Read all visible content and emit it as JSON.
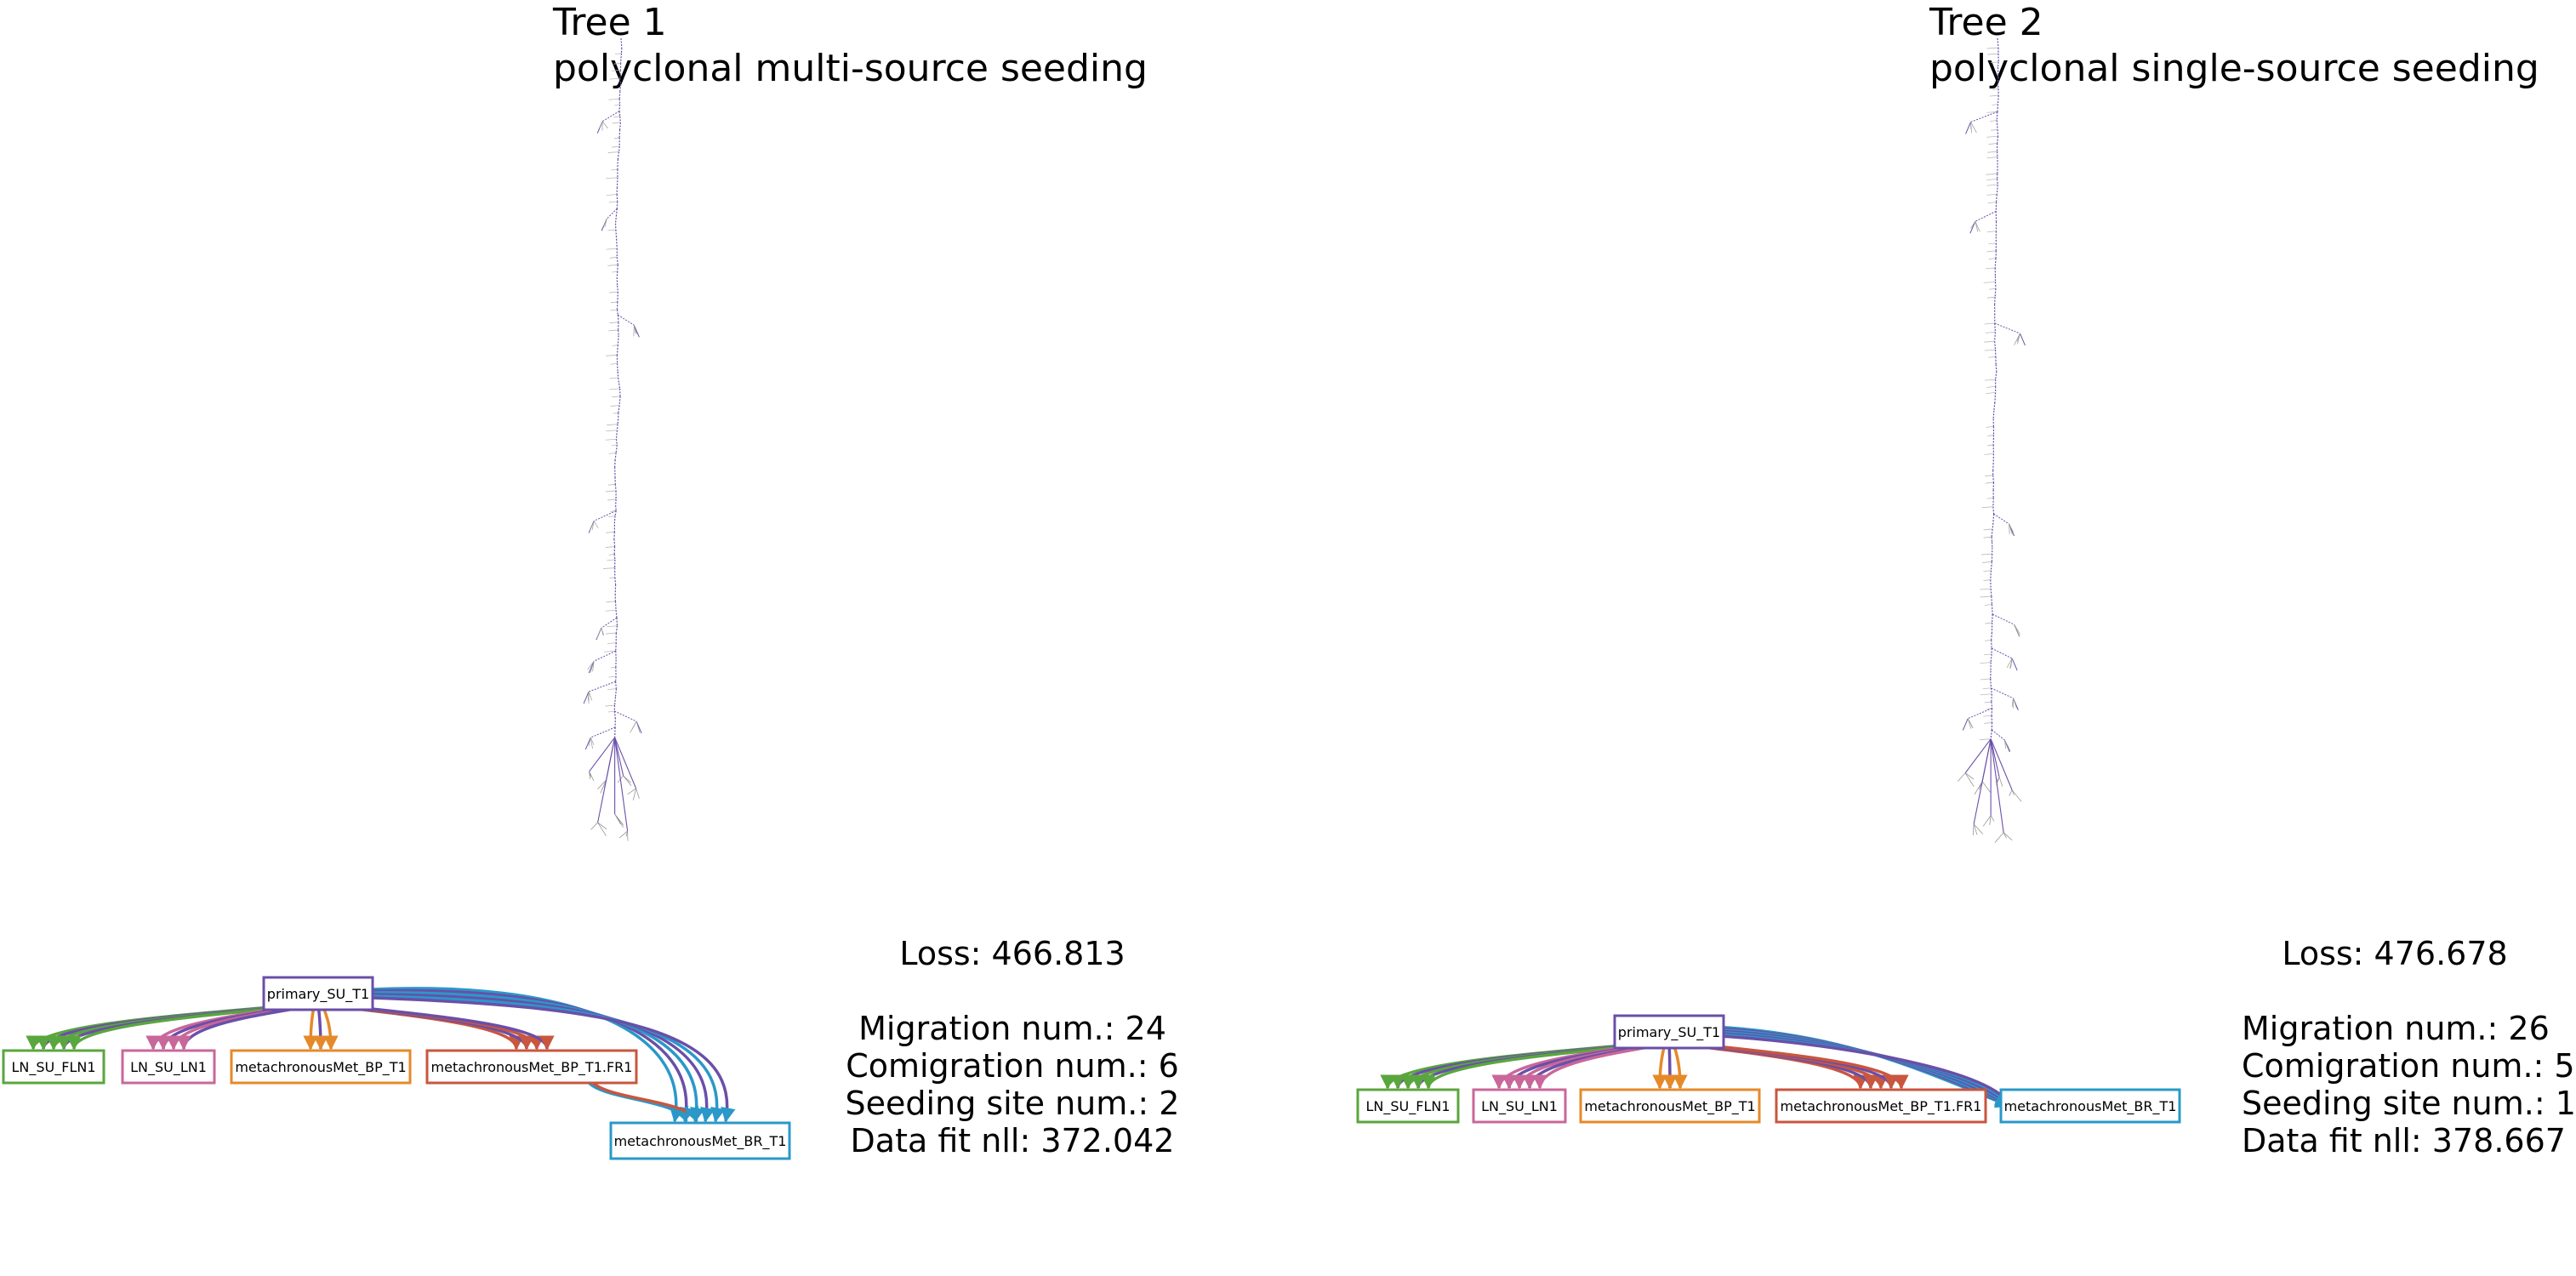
{
  "trees": [
    {
      "name": "Tree 1",
      "pattern": "polyclonal multi-source seeding",
      "loss": "Loss: 466.813",
      "migration": "Migration num.: 24",
      "comigration": "Comigration num.: 6",
      "seeding_sites": "Seeding site num.: 2",
      "data_fit": "Data fit nll: 372.042",
      "sites": [
        {
          "id": "primary",
          "label": "primary_SU_T1",
          "color": "#6a4fa8"
        },
        {
          "id": "fln1",
          "label": "LN_SU_FLN1",
          "color": "#5aa63e"
        },
        {
          "id": "ln1",
          "label": "LN_SU_LN1",
          "color": "#c9679a"
        },
        {
          "id": "bp",
          "label": "metachronousMet_BP_T1",
          "color": "#e58a2a"
        },
        {
          "id": "fr1",
          "label": "metachronousMet_BP_T1.FR1",
          "color": "#c9563f"
        },
        {
          "id": "br",
          "label": "metachronousMet_BR_T1",
          "color": "#2a98c9"
        }
      ],
      "migrations": [
        {
          "from": "primary",
          "to": "fln1",
          "count": 5
        },
        {
          "from": "primary",
          "to": "ln1",
          "count": 4
        },
        {
          "from": "primary",
          "to": "bp",
          "count": 3
        },
        {
          "from": "primary",
          "to": "fr1",
          "count": 4
        },
        {
          "from": "primary",
          "to": "br",
          "count": 6
        },
        {
          "from": "fr1",
          "to": "br",
          "count": 2
        }
      ]
    },
    {
      "name": "Tree 2",
      "pattern": "polyclonal single-source seeding",
      "loss": "Loss: 476.678",
      "migration": "Migration num.: 26",
      "comigration": "Comigration num.: 5",
      "seeding_sites": "Seeding site num.: 1",
      "data_fit": "Data fit nll: 378.667",
      "sites": [
        {
          "id": "primary",
          "label": "primary_SU_T1",
          "color": "#6a4fa8"
        },
        {
          "id": "fln1",
          "label": "LN_SU_FLN1",
          "color": "#5aa63e"
        },
        {
          "id": "ln1",
          "label": "LN_SU_LN1",
          "color": "#c9679a"
        },
        {
          "id": "bp",
          "label": "metachronousMet_BP_T1",
          "color": "#e58a2a"
        },
        {
          "id": "fr1",
          "label": "metachronousMet_BP_T1.FR1",
          "color": "#c9563f"
        },
        {
          "id": "br",
          "label": "metachronousMet_BR_T1",
          "color": "#2a98c9"
        }
      ],
      "migrations": [
        {
          "from": "primary",
          "to": "fln1",
          "count": 5
        },
        {
          "from": "primary",
          "to": "ln1",
          "count": 5
        },
        {
          "from": "primary",
          "to": "bp",
          "count": 3
        },
        {
          "from": "primary",
          "to": "fr1",
          "count": 5
        },
        {
          "from": "primary",
          "to": "br",
          "count": 8
        }
      ]
    }
  ]
}
